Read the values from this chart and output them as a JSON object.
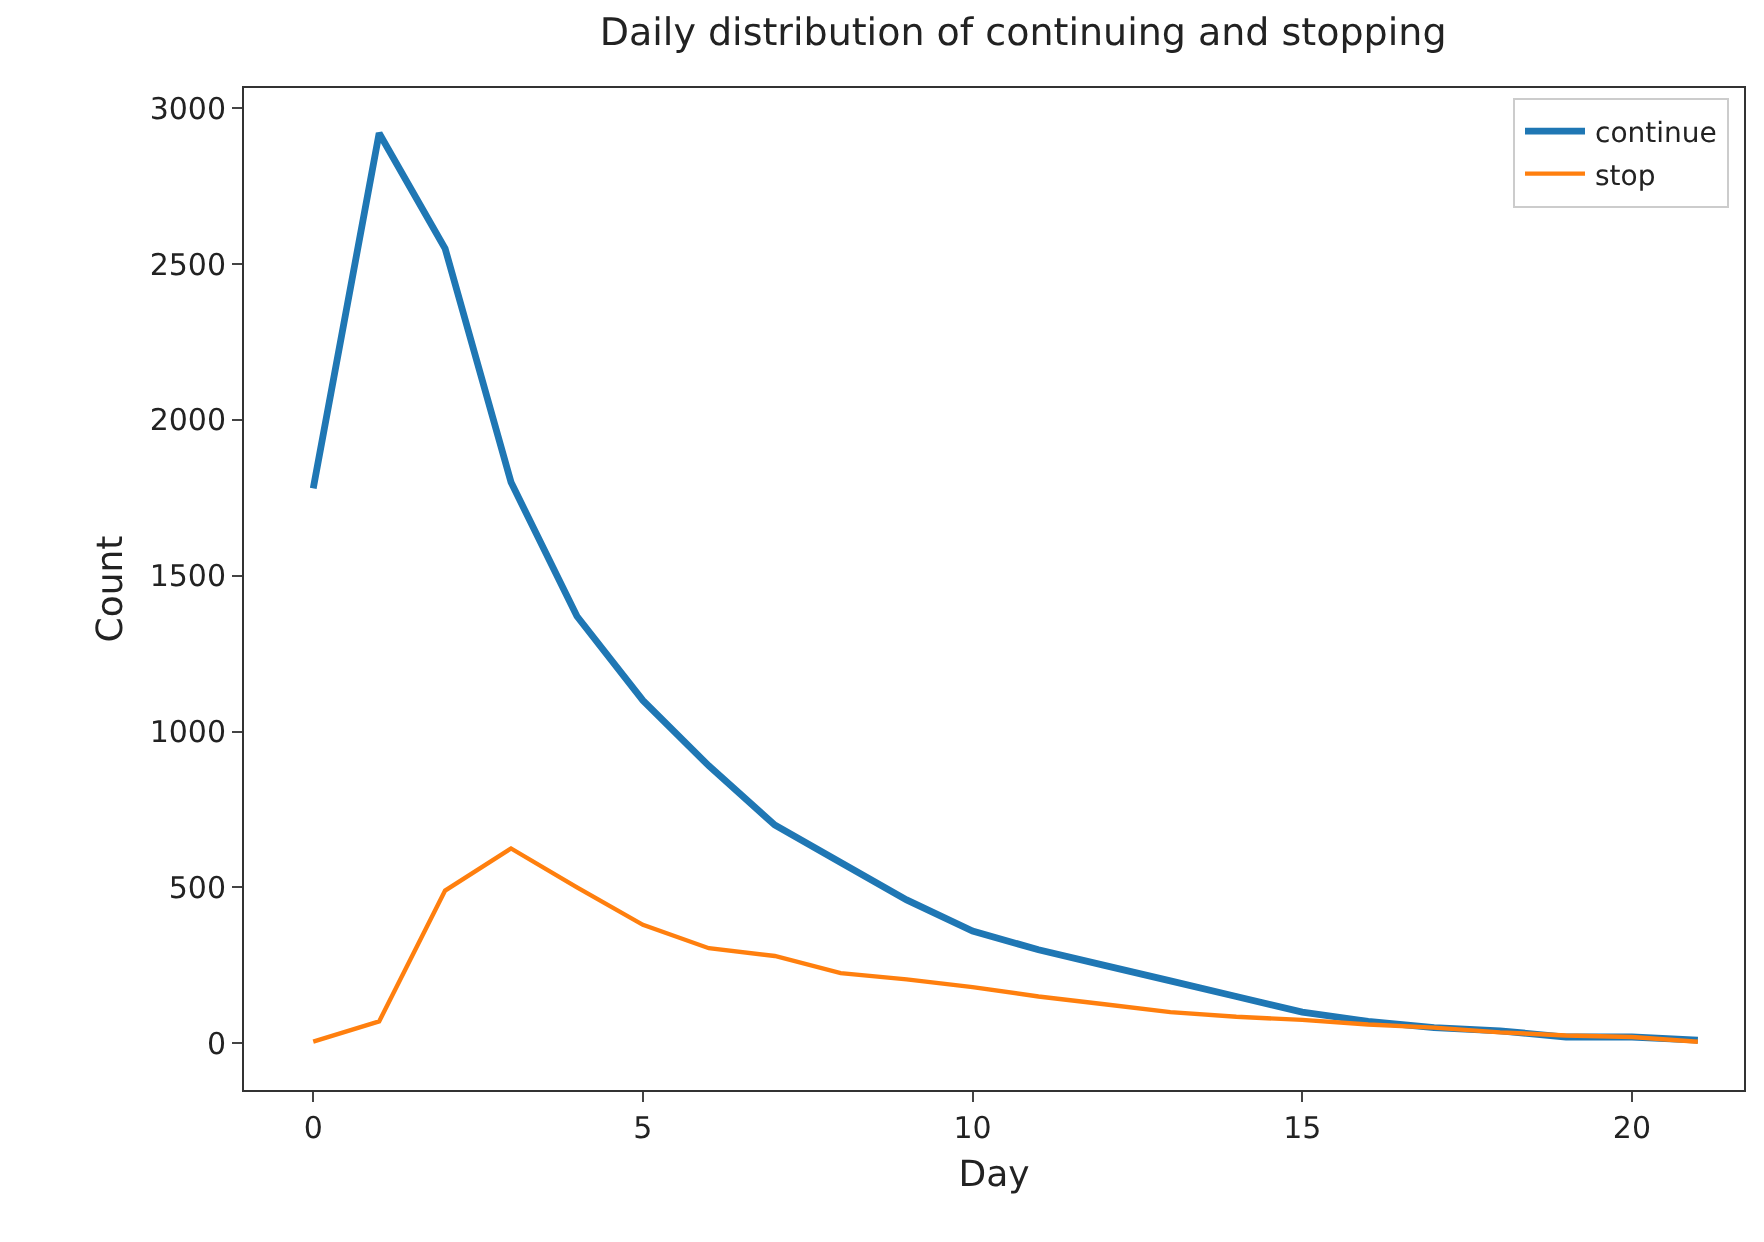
{
  "chart_data": {
    "type": "line",
    "title": "Daily distribution of continuing and stopping",
    "xlabel": "Day",
    "ylabel": "Count",
    "x": [
      0,
      1,
      2,
      3,
      4,
      5,
      6,
      7,
      8,
      9,
      10,
      11,
      12,
      13,
      14,
      15,
      16,
      17,
      18,
      19,
      20,
      21
    ],
    "series": [
      {
        "name": "continue",
        "color": "#1f77b4",
        "values": [
          1780,
          2920,
          2550,
          1800,
          1370,
          1100,
          890,
          700,
          580,
          460,
          360,
          300,
          250,
          200,
          150,
          100,
          70,
          50,
          40,
          20,
          20,
          10
        ]
      },
      {
        "name": "stop",
        "color": "#ff7f0e",
        "values": [
          5,
          70,
          490,
          625,
          500,
          380,
          305,
          280,
          225,
          205,
          180,
          150,
          125,
          100,
          85,
          75,
          60,
          50,
          35,
          25,
          20,
          5
        ]
      }
    ],
    "xlim": [
      -1.05,
      21.7
    ],
    "ylim": [
      -150,
      3065
    ],
    "xticks": [
      0,
      5,
      10,
      15,
      20
    ],
    "yticks": [
      0,
      500,
      1000,
      1500,
      2000,
      2500,
      3000
    ],
    "grid": false,
    "legend": "top right",
    "marker": "none",
    "line_style": "solid"
  }
}
